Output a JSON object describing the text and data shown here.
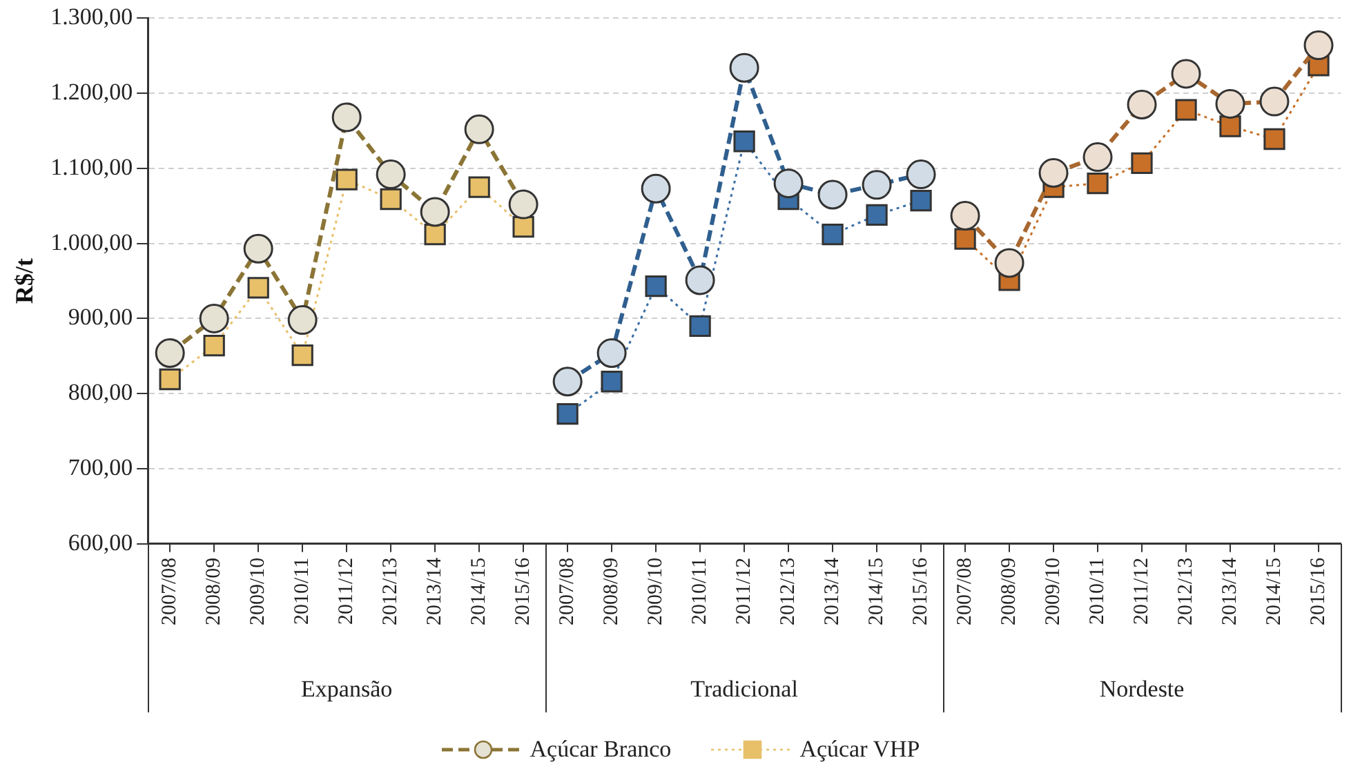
{
  "chart_data": {
    "type": "line",
    "ylabel": "R$/t",
    "categories": [
      "2007/08",
      "2008/09",
      "2009/10",
      "2010/11",
      "2011/12",
      "2012/13",
      "2013/14",
      "2014/15",
      "2015/16",
      "2007/08",
      "2008/09",
      "2009/10",
      "2010/11",
      "2011/12",
      "2012/13",
      "2013/14",
      "2014/15",
      "2015/16",
      "2007/08",
      "2008/09",
      "2009/10",
      "2010/11",
      "2011/12",
      "2012/13",
      "2013/14",
      "2014/15",
      "2015/16"
    ],
    "annotations": [
      "Expansão",
      "Tradicional",
      "Nordeste"
    ],
    "ylim": [
      600,
      1300
    ],
    "yticks": [
      {
        "value": 600,
        "label": "600,00"
      },
      {
        "value": 700,
        "label": "700,00"
      },
      {
        "value": 800,
        "label": "800,00"
      },
      {
        "value": 900,
        "label": "900,00"
      },
      {
        "value": 1000,
        "label": "1.000,00"
      },
      {
        "value": 1100,
        "label": "1.100,00"
      },
      {
        "value": 1200,
        "label": "1.200,00"
      },
      {
        "value": 1300,
        "label": "1.300,00"
      }
    ],
    "grid": "y",
    "legend": "bottom",
    "series": [
      {
        "name": "Açúcar Branco",
        "color": "#8b7536",
        "marker": "circle",
        "line_style": "dashed",
        "values": [
          854,
          900,
          993,
          898,
          1168,
          1092,
          1042,
          1152,
          1052,
          null,
          null,
          null,
          null,
          null,
          null,
          null,
          null,
          null,
          null,
          null,
          null,
          null,
          null,
          null,
          null,
          null,
          null
        ]
      },
      {
        "name": "Açúcar VHP",
        "color": "#e8c06a",
        "marker": "square",
        "line_style": "dotted",
        "values": [
          819,
          864,
          941,
          851,
          1085,
          1059,
          1012,
          1075,
          1022,
          null,
          null,
          null,
          null,
          null,
          null,
          null,
          null,
          null,
          null,
          null,
          null,
          null,
          null,
          null,
          null,
          null,
          null
        ]
      },
      {
        "color": "#2f5f8f",
        "marker": "circle",
        "line_style": "dashed",
        "values": [
          null,
          null,
          null,
          null,
          null,
          null,
          null,
          null,
          null,
          816,
          854,
          1073,
          951,
          1234,
          1080,
          1065,
          1078,
          1092,
          null,
          null,
          null,
          null,
          null,
          null,
          null,
          null,
          null
        ]
      },
      {
        "color": "#3a6ea5",
        "marker": "square",
        "line_style": "dotted",
        "values": [
          null,
          null,
          null,
          null,
          null,
          null,
          null,
          null,
          null,
          773,
          816,
          943,
          890,
          1136,
          1059,
          1012,
          1038,
          1057,
          null,
          null,
          null,
          null,
          null,
          null,
          null,
          null,
          null
        ]
      },
      {
        "color": "#a8672f",
        "marker": "circle",
        "line_style": "dashed",
        "values": [
          null,
          null,
          null,
          null,
          null,
          null,
          null,
          null,
          null,
          null,
          null,
          null,
          null,
          null,
          null,
          null,
          null,
          null,
          1037,
          974,
          1094,
          1115,
          1185,
          1226,
          1186,
          1189,
          1264
        ]
      },
      {
        "color": "#c87028",
        "marker": "square",
        "line_style": "dotted",
        "values": [
          null,
          null,
          null,
          null,
          null,
          null,
          null,
          null,
          null,
          null,
          null,
          null,
          null,
          null,
          null,
          null,
          null,
          null,
          1006,
          951,
          1075,
          1080,
          1107,
          1178,
          1156,
          1139,
          1237
        ]
      }
    ]
  }
}
